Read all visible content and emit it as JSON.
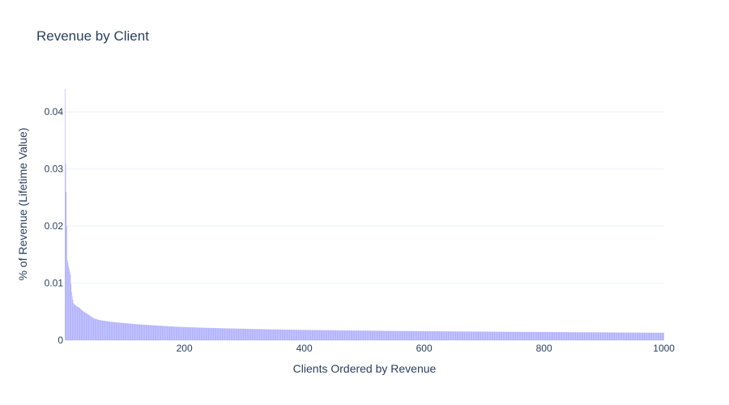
{
  "chart_data": {
    "type": "bar",
    "title": "Revenue by Client",
    "xlabel": "Clients Ordered by Revenue",
    "ylabel": "% of Revenue (Lifetime Value)",
    "xlim": [
      1,
      1000
    ],
    "ylim": [
      0,
      0.044
    ],
    "x_ticks": [
      200,
      400,
      600,
      800,
      1000
    ],
    "x_tick_labels": [
      "200",
      "400",
      "600",
      "800",
      "1000"
    ],
    "y_ticks": [
      0,
      0.01,
      0.02,
      0.03,
      0.04
    ],
    "y_tick_labels": [
      "0",
      "0.01",
      "0.02",
      "0.03",
      "0.04"
    ],
    "bar_color": "#aaaaff",
    "grid": true,
    "legend": "none",
    "series_anchor_points": {
      "rank": [
        1,
        2,
        3,
        4,
        5,
        6,
        8,
        10,
        12,
        15,
        20,
        25,
        30,
        40,
        50,
        60,
        80,
        100,
        150,
        200,
        300,
        400,
        500,
        600,
        700,
        800,
        900,
        1000
      ],
      "value": [
        0.044,
        0.031,
        0.026,
        0.02,
        0.014,
        0.0135,
        0.0125,
        0.0115,
        0.0085,
        0.0065,
        0.006,
        0.0057,
        0.0052,
        0.0045,
        0.0038,
        0.0035,
        0.0032,
        0.003,
        0.0026,
        0.0023,
        0.002,
        0.0018,
        0.00168,
        0.00158,
        0.0015,
        0.00143,
        0.00137,
        0.0013
      ]
    }
  }
}
